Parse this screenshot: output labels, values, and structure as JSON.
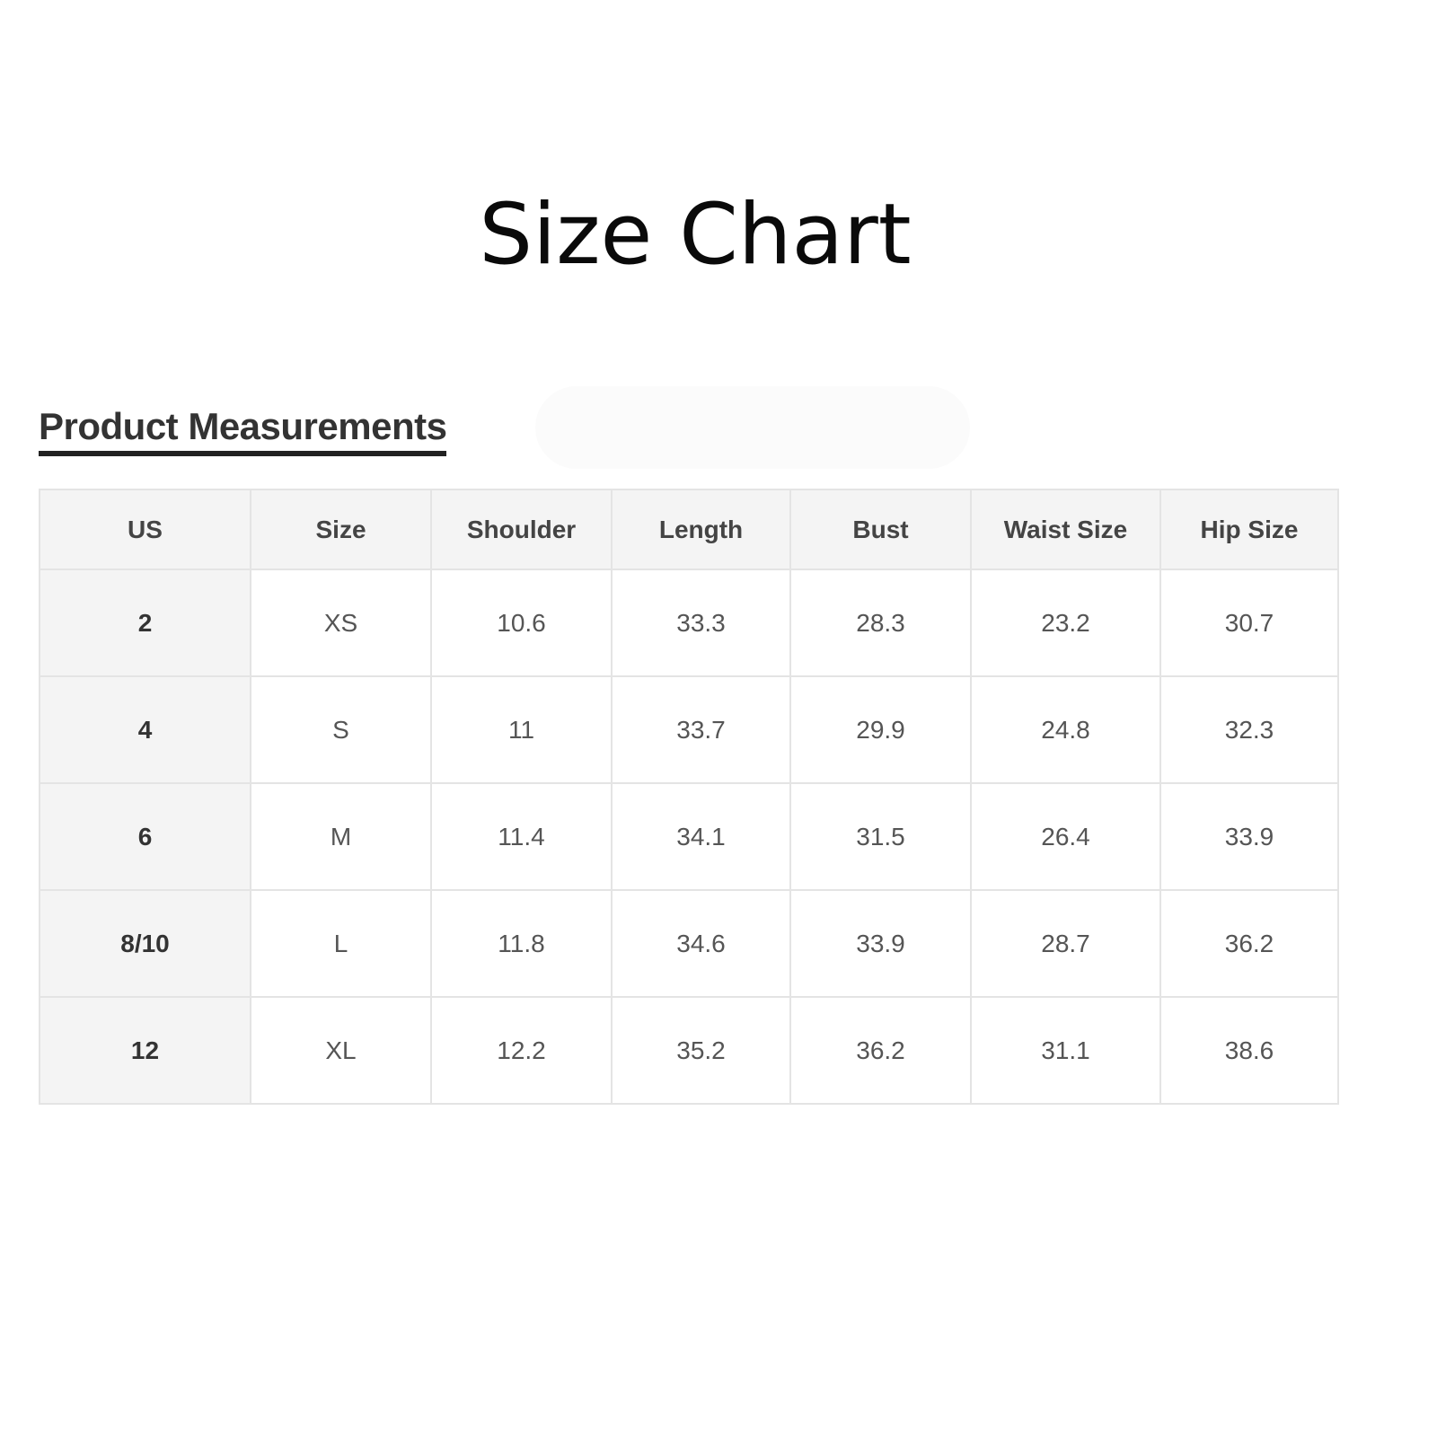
{
  "page": {
    "title": "Size Chart"
  },
  "section": {
    "heading": "Product Measurements"
  },
  "table": {
    "headers": [
      "US",
      "Size",
      "Shoulder",
      "Length",
      "Bust",
      "Waist Size",
      "Hip Size"
    ],
    "rows": [
      [
        "2",
        "XS",
        "10.6",
        "33.3",
        "28.3",
        "23.2",
        "30.7"
      ],
      [
        "4",
        "S",
        "11",
        "33.7",
        "29.9",
        "24.8",
        "32.3"
      ],
      [
        "6",
        "M",
        "11.4",
        "34.1",
        "31.5",
        "26.4",
        "33.9"
      ],
      [
        "8/10",
        "L",
        "11.8",
        "34.6",
        "33.9",
        "28.7",
        "36.2"
      ],
      [
        "12",
        "XL",
        "12.2",
        "35.2",
        "36.2",
        "31.1",
        "38.6"
      ]
    ]
  }
}
